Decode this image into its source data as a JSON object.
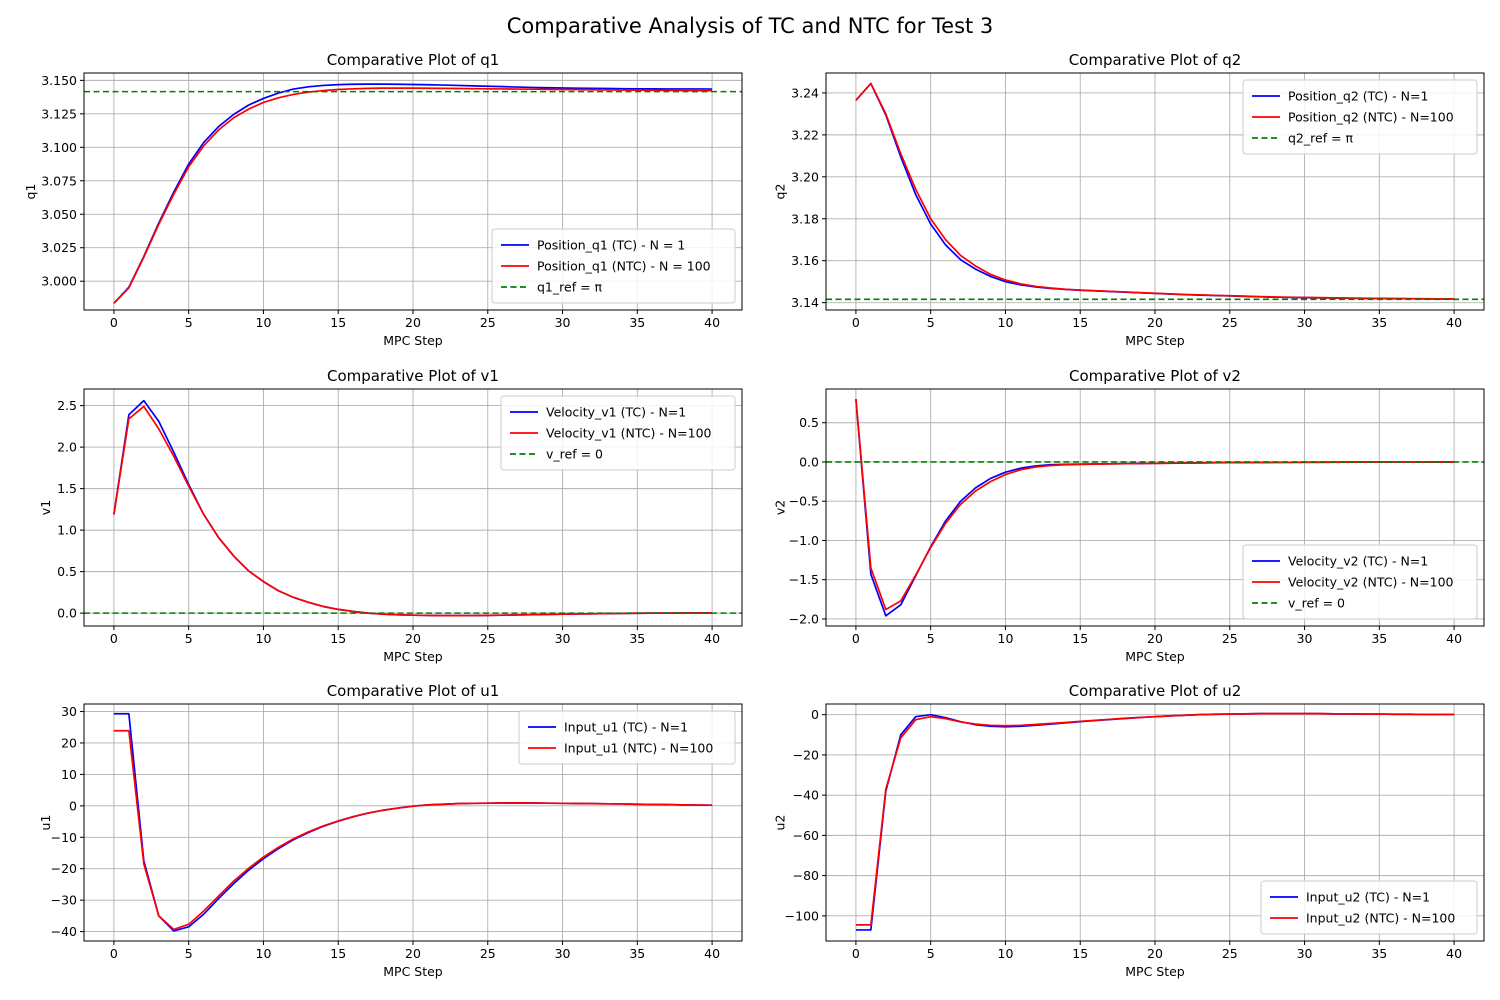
{
  "figure": {
    "title": "Comparative Analysis of TC and NTC for Test 3"
  },
  "chart_data": [
    {
      "type": "line",
      "title": "Comparative Plot of q1",
      "xlabel": "MPC Step",
      "ylabel": "q1",
      "xlim": [
        -2,
        42
      ],
      "ylim": [
        2.9785,
        3.1555
      ],
      "xticks": [
        0,
        5,
        10,
        15,
        20,
        25,
        30,
        35,
        40
      ],
      "xtick_labels": [
        "0",
        "5",
        "10",
        "15",
        "20",
        "25",
        "30",
        "35",
        "40"
      ],
      "yticks": [
        3.0,
        3.025,
        3.05,
        3.075,
        3.1,
        3.125,
        3.15
      ],
      "ytick_labels": [
        "3.000",
        "3.025",
        "3.050",
        "3.075",
        "3.100",
        "3.125",
        "3.150"
      ],
      "grid": true,
      "legend": "lower right",
      "x": [
        0,
        1,
        2,
        3,
        4,
        5,
        6,
        7,
        8,
        9,
        10,
        11,
        12,
        13,
        14,
        15,
        16,
        17,
        18,
        19,
        20,
        21,
        22,
        23,
        24,
        25,
        26,
        27,
        28,
        29,
        30,
        31,
        32,
        33,
        34,
        35,
        36,
        37,
        38,
        39,
        40
      ],
      "series": [
        {
          "name": "Position_q1 (TC) - N = 1",
          "color": "#0000ff",
          "style": "solid",
          "values": [
            2.9835,
            2.9955,
            3.0185,
            3.0435,
            3.0665,
            3.0875,
            3.1035,
            3.1155,
            3.1245,
            3.1315,
            3.1365,
            3.1405,
            3.1435,
            3.1452,
            3.1462,
            3.1468,
            3.1471,
            3.1472,
            3.1472,
            3.1471,
            3.1469,
            3.1467,
            3.1465,
            3.1462,
            3.1459,
            3.1456,
            3.1453,
            3.145,
            3.1447,
            3.1445,
            3.1443,
            3.1441,
            3.144,
            3.1439,
            3.1438,
            3.1437,
            3.1437,
            3.1436,
            3.1436,
            3.1436,
            3.1435
          ]
        },
        {
          "name": "Position_q1 (NTC) - N = 100",
          "color": "#ff0000",
          "style": "solid",
          "values": [
            2.9835,
            2.995,
            3.018,
            3.0425,
            3.065,
            3.0855,
            3.101,
            3.113,
            3.122,
            3.1285,
            3.1335,
            3.137,
            3.1395,
            3.1412,
            3.1424,
            3.1432,
            3.1437,
            3.144,
            3.1442,
            3.1442,
            3.1442,
            3.1441,
            3.144,
            3.1439,
            3.1438,
            3.1437,
            3.1436,
            3.1435,
            3.1434,
            3.1433,
            3.1432,
            3.1431,
            3.143,
            3.1429,
            3.1428,
            3.1427,
            3.1426,
            3.1425,
            3.1424,
            3.1423,
            3.1423
          ]
        },
        {
          "name": "q1_ref = π",
          "color": "#008000",
          "style": "dashed",
          "constant": 3.14159
        }
      ]
    },
    {
      "type": "line",
      "title": "Comparative Plot of q2",
      "xlabel": "MPC Step",
      "ylabel": "q2",
      "xlim": [
        -2,
        42
      ],
      "ylim": [
        3.1365,
        3.2495
      ],
      "xticks": [
        0,
        5,
        10,
        15,
        20,
        25,
        30,
        35,
        40
      ],
      "xtick_labels": [
        "0",
        "5",
        "10",
        "15",
        "20",
        "25",
        "30",
        "35",
        "40"
      ],
      "yticks": [
        3.14,
        3.16,
        3.18,
        3.2,
        3.22,
        3.24
      ],
      "ytick_labels": [
        "3.14",
        "3.16",
        "3.18",
        "3.20",
        "3.22",
        "3.24"
      ],
      "grid": true,
      "legend": "upper right",
      "x": [
        0,
        1,
        2,
        3,
        4,
        5,
        6,
        7,
        8,
        9,
        10,
        11,
        12,
        13,
        14,
        15,
        16,
        17,
        18,
        19,
        20,
        21,
        22,
        23,
        24,
        25,
        26,
        27,
        28,
        29,
        30,
        31,
        32,
        33,
        34,
        35,
        36,
        37,
        38,
        39,
        40
      ],
      "series": [
        {
          "name": "Position_q2 (TC) - N=1",
          "color": "#0000ff",
          "style": "solid",
          "values": [
            3.2365,
            3.2445,
            3.2295,
            3.2095,
            3.1915,
            3.1775,
            3.1675,
            3.1605,
            3.156,
            3.1525,
            3.15,
            3.1485,
            3.1475,
            3.1468,
            3.1463,
            3.1459,
            3.1456,
            3.1453,
            3.145,
            3.1447,
            3.1444,
            3.1441,
            3.1438,
            3.1436,
            3.1434,
            3.1432,
            3.143,
            3.1428,
            3.1426,
            3.1425,
            3.1424,
            3.1423,
            3.1422,
            3.1421,
            3.142,
            3.142,
            3.1419,
            3.1419,
            3.1418,
            3.1418,
            3.1418
          ]
        },
        {
          "name": "Position_q2 (NTC) - N=100",
          "color": "#ff0000",
          "style": "solid",
          "values": [
            3.2365,
            3.2445,
            3.23,
            3.211,
            3.194,
            3.18,
            3.17,
            3.1625,
            3.1575,
            3.1535,
            3.1508,
            3.149,
            3.1478,
            3.147,
            3.1464,
            3.146,
            3.1457,
            3.1454,
            3.1451,
            3.1448,
            3.1445,
            3.1442,
            3.1439,
            3.1437,
            3.1435,
            3.1433,
            3.1431,
            3.1429,
            3.1427,
            3.1426,
            3.1425,
            3.1424,
            3.1423,
            3.1422,
            3.1421,
            3.142,
            3.142,
            3.1419,
            3.1419,
            3.1418,
            3.1418
          ]
        },
        {
          "name": "q2_ref = π",
          "color": "#008000",
          "style": "dashed",
          "constant": 3.14159
        }
      ]
    },
    {
      "type": "line",
      "title": "Comparative Plot of v1",
      "xlabel": "MPC Step",
      "ylabel": "v1",
      "xlim": [
        -2,
        42
      ],
      "ylim": [
        -0.155,
        2.7
      ],
      "xticks": [
        0,
        5,
        10,
        15,
        20,
        25,
        30,
        35,
        40
      ],
      "xtick_labels": [
        "0",
        "5",
        "10",
        "15",
        "20",
        "25",
        "30",
        "35",
        "40"
      ],
      "yticks": [
        0.0,
        0.5,
        1.0,
        1.5,
        2.0,
        2.5
      ],
      "ytick_labels": [
        "0.0",
        "0.5",
        "1.0",
        "1.5",
        "2.0",
        "2.5"
      ],
      "grid": true,
      "legend": "upper right",
      "x": [
        0,
        1,
        2,
        3,
        4,
        5,
        6,
        7,
        8,
        9,
        10,
        11,
        12,
        13,
        14,
        15,
        16,
        17,
        18,
        19,
        20,
        21,
        22,
        23,
        24,
        25,
        26,
        27,
        28,
        29,
        30,
        31,
        32,
        33,
        34,
        35,
        36,
        37,
        38,
        39,
        40
      ],
      "series": [
        {
          "name": "Velocity_v1 (TC) - N=1",
          "color": "#0000ff",
          "style": "solid",
          "values": [
            1.19,
            2.39,
            2.56,
            2.31,
            1.94,
            1.55,
            1.19,
            0.91,
            0.69,
            0.51,
            0.38,
            0.27,
            0.19,
            0.13,
            0.08,
            0.045,
            0.02,
            0.0,
            -0.012,
            -0.02,
            -0.025,
            -0.028,
            -0.03,
            -0.03,
            -0.029,
            -0.027,
            -0.025,
            -0.022,
            -0.019,
            -0.016,
            -0.013,
            -0.01,
            -0.008,
            -0.005,
            -0.003,
            -0.001,
            0.0,
            0.001,
            0.002,
            0.002,
            0.002
          ]
        },
        {
          "name": "Velocity_v1 (NTC) - N=100",
          "color": "#ff0000",
          "style": "solid",
          "values": [
            1.19,
            2.34,
            2.49,
            2.22,
            1.89,
            1.53,
            1.19,
            0.91,
            0.69,
            0.51,
            0.38,
            0.27,
            0.19,
            0.13,
            0.08,
            0.045,
            0.02,
            0.0,
            -0.012,
            -0.02,
            -0.025,
            -0.028,
            -0.03,
            -0.03,
            -0.029,
            -0.027,
            -0.025,
            -0.022,
            -0.019,
            -0.016,
            -0.013,
            -0.01,
            -0.008,
            -0.005,
            -0.003,
            -0.001,
            0.0,
            0.001,
            0.002,
            0.002,
            0.002
          ]
        },
        {
          "name": "v_ref = 0",
          "color": "#008000",
          "style": "dashed",
          "constant": 0
        }
      ]
    },
    {
      "type": "line",
      "title": "Comparative Plot of v2",
      "xlabel": "MPC Step",
      "ylabel": "v2",
      "xlim": [
        -2,
        42
      ],
      "ylim": [
        -2.09,
        0.93
      ],
      "xticks": [
        0,
        5,
        10,
        15,
        20,
        25,
        30,
        35,
        40
      ],
      "xtick_labels": [
        "0",
        "5",
        "10",
        "15",
        "20",
        "25",
        "30",
        "35",
        "40"
      ],
      "yticks": [
        -2.0,
        -1.5,
        -1.0,
        -0.5,
        0.0,
        0.5
      ],
      "ytick_labels": [
        "−2.0",
        "−1.5",
        "−1.0",
        "−0.5",
        "0.0",
        "0.5"
      ],
      "grid": true,
      "legend": "lower right",
      "x": [
        0,
        1,
        2,
        3,
        4,
        5,
        6,
        7,
        8,
        9,
        10,
        11,
        12,
        13,
        14,
        15,
        16,
        17,
        18,
        19,
        20,
        21,
        22,
        23,
        24,
        25,
        26,
        27,
        28,
        29,
        30,
        31,
        32,
        33,
        34,
        35,
        36,
        37,
        38,
        39,
        40
      ],
      "series": [
        {
          "name": "Velocity_v2 (TC) - N=1",
          "color": "#0000ff",
          "style": "solid",
          "values": [
            0.8,
            -1.43,
            -1.96,
            -1.82,
            -1.45,
            -1.08,
            -0.75,
            -0.5,
            -0.33,
            -0.21,
            -0.13,
            -0.08,
            -0.05,
            -0.035,
            -0.03,
            -0.027,
            -0.025,
            -0.023,
            -0.021,
            -0.019,
            -0.017,
            -0.015,
            -0.013,
            -0.011,
            -0.009,
            -0.008,
            -0.007,
            -0.006,
            -0.005,
            -0.004,
            -0.003,
            -0.003,
            -0.002,
            -0.002,
            -0.002,
            -0.001,
            -0.001,
            -0.001,
            -0.001,
            0.0,
            0.0
          ]
        },
        {
          "name": "Velocity_v2 (NTC) - N=100",
          "color": "#ff0000",
          "style": "solid",
          "values": [
            0.8,
            -1.35,
            -1.88,
            -1.77,
            -1.44,
            -1.09,
            -0.78,
            -0.54,
            -0.37,
            -0.25,
            -0.16,
            -0.1,
            -0.065,
            -0.045,
            -0.035,
            -0.03,
            -0.027,
            -0.024,
            -0.022,
            -0.02,
            -0.018,
            -0.016,
            -0.014,
            -0.012,
            -0.01,
            -0.009,
            -0.008,
            -0.007,
            -0.006,
            -0.005,
            -0.004,
            -0.003,
            -0.003,
            -0.002,
            -0.002,
            -0.001,
            -0.001,
            -0.001,
            -0.001,
            0.0,
            0.0
          ]
        },
        {
          "name": "v_ref = 0",
          "color": "#008000",
          "style": "dashed",
          "constant": 0
        }
      ]
    },
    {
      "type": "line",
      "title": "Comparative Plot of u1",
      "xlabel": "MPC Step",
      "ylabel": "u1",
      "xlim": [
        -2,
        42
      ],
      "ylim": [
        -43.0,
        32.4
      ],
      "xticks": [
        0,
        5,
        10,
        15,
        20,
        25,
        30,
        35,
        40
      ],
      "xtick_labels": [
        "0",
        "5",
        "10",
        "15",
        "20",
        "25",
        "30",
        "35",
        "40"
      ],
      "yticks": [
        -40,
        -30,
        -20,
        -10,
        0,
        10,
        20,
        30
      ],
      "ytick_labels": [
        "−40",
        "−30",
        "−20",
        "−10",
        "0",
        "10",
        "20",
        "30"
      ],
      "grid": true,
      "legend": "upper right",
      "x": [
        0,
        1,
        2,
        3,
        4,
        5,
        6,
        7,
        8,
        9,
        10,
        11,
        12,
        13,
        14,
        15,
        16,
        17,
        18,
        19,
        20,
        21,
        22,
        23,
        24,
        25,
        26,
        27,
        28,
        29,
        30,
        31,
        32,
        33,
        34,
        35,
        36,
        37,
        38,
        39,
        40
      ],
      "series": [
        {
          "name": "Input_u1 (TC) - N=1",
          "color": "#0000ff",
          "style": "solid",
          "values": [
            29.3,
            29.3,
            -17.5,
            -35.0,
            -39.8,
            -38.5,
            -34.5,
            -29.5,
            -24.8,
            -20.5,
            -16.8,
            -13.6,
            -10.8,
            -8.5,
            -6.5,
            -4.9,
            -3.5,
            -2.3,
            -1.4,
            -0.7,
            -0.1,
            0.3,
            0.5,
            0.7,
            0.8,
            0.85,
            0.9,
            0.9,
            0.9,
            0.85,
            0.8,
            0.75,
            0.7,
            0.65,
            0.6,
            0.5,
            0.45,
            0.4,
            0.3,
            0.25,
            0.2
          ]
        },
        {
          "name": "Input_u1 (NTC) - N=100",
          "color": "#ff0000",
          "style": "solid",
          "values": [
            23.9,
            23.9,
            -18.5,
            -35.0,
            -39.3,
            -37.7,
            -33.5,
            -28.7,
            -24.0,
            -19.9,
            -16.3,
            -13.2,
            -10.5,
            -8.3,
            -6.4,
            -4.8,
            -3.4,
            -2.3,
            -1.4,
            -0.7,
            -0.1,
            0.3,
            0.5,
            0.7,
            0.8,
            0.85,
            0.9,
            0.9,
            0.9,
            0.85,
            0.8,
            0.75,
            0.7,
            0.65,
            0.6,
            0.5,
            0.45,
            0.4,
            0.3,
            0.25,
            0.2
          ]
        }
      ]
    },
    {
      "type": "line",
      "title": "Comparative Plot of u2",
      "xlabel": "MPC Step",
      "ylabel": "u2",
      "xlim": [
        -2,
        42
      ],
      "ylim": [
        -112.5,
        5.3
      ],
      "xticks": [
        0,
        5,
        10,
        15,
        20,
        25,
        30,
        35,
        40
      ],
      "xtick_labels": [
        "0",
        "5",
        "10",
        "15",
        "20",
        "25",
        "30",
        "35",
        "40"
      ],
      "yticks": [
        -100,
        -80,
        -60,
        -40,
        -20,
        0
      ],
      "ytick_labels": [
        "−100",
        "−80",
        "−60",
        "−40",
        "−20",
        "0"
      ],
      "grid": true,
      "legend": "lower right",
      "x": [
        0,
        1,
        2,
        3,
        4,
        5,
        6,
        7,
        8,
        9,
        10,
        11,
        12,
        13,
        14,
        15,
        16,
        17,
        18,
        19,
        20,
        21,
        22,
        23,
        24,
        25,
        26,
        27,
        28,
        29,
        30,
        31,
        32,
        33,
        34,
        35,
        36,
        37,
        38,
        39,
        40
      ],
      "series": [
        {
          "name": "Input_u2 (TC) - N=1",
          "color": "#0000ff",
          "style": "solid",
          "values": [
            -107.0,
            -107.0,
            -38.0,
            -10.0,
            -1.0,
            0.0,
            -1.5,
            -3.5,
            -5.0,
            -5.8,
            -6.0,
            -5.8,
            -5.3,
            -4.7,
            -4.1,
            -3.5,
            -2.9,
            -2.4,
            -1.9,
            -1.4,
            -1.0,
            -0.6,
            -0.3,
            0.0,
            0.2,
            0.3,
            0.4,
            0.5,
            0.5,
            0.5,
            0.5,
            0.5,
            0.4,
            0.4,
            0.3,
            0.3,
            0.2,
            0.2,
            0.1,
            0.1,
            0.1
          ]
        },
        {
          "name": "Input_u2 (NTC) - N=100",
          "color": "#ff0000",
          "style": "solid",
          "values": [
            -104.5,
            -104.5,
            -37.0,
            -11.5,
            -2.5,
            -1.0,
            -2.0,
            -3.6,
            -4.7,
            -5.3,
            -5.5,
            -5.3,
            -4.9,
            -4.4,
            -3.9,
            -3.3,
            -2.8,
            -2.3,
            -1.8,
            -1.4,
            -1.0,
            -0.6,
            -0.3,
            0.0,
            0.2,
            0.3,
            0.4,
            0.5,
            0.5,
            0.5,
            0.5,
            0.5,
            0.4,
            0.4,
            0.3,
            0.3,
            0.2,
            0.2,
            0.1,
            0.1,
            0.1
          ]
        }
      ]
    }
  ]
}
